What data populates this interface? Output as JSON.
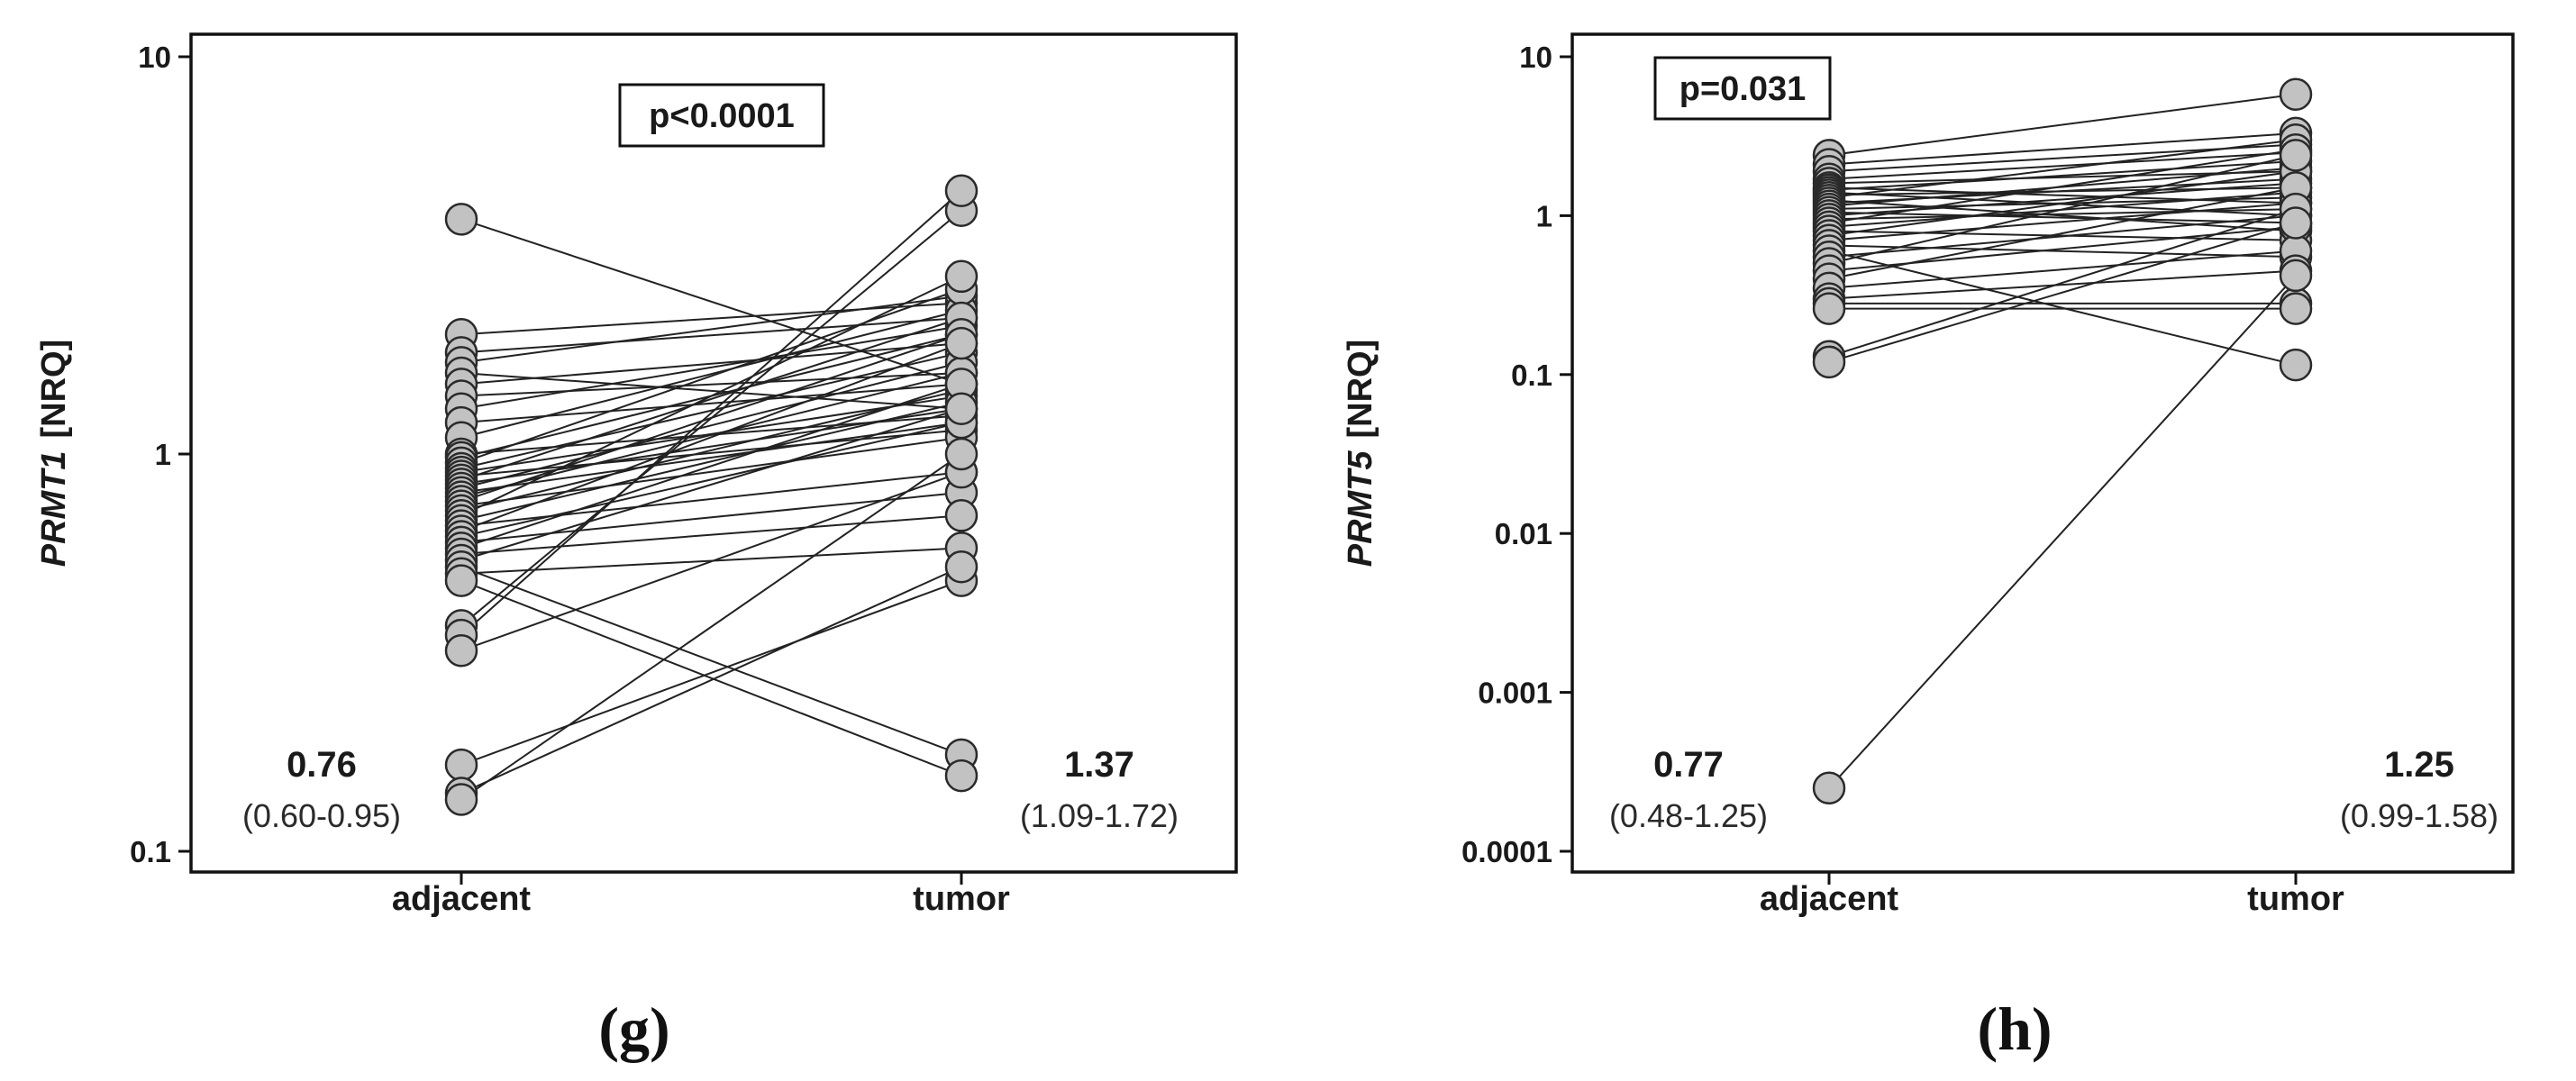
{
  "chart_data": [
    {
      "type": "line",
      "subtype": "paired-dot-plot",
      "panel_label": "(g)",
      "y_scale": "log",
      "ylim": [
        0.1,
        10
      ],
      "ylabel_gene": "PRMT1",
      "ylabel_unit": "[NRQ]",
      "y_tick_labels": [
        "10",
        "1",
        "0.1"
      ],
      "y_tick_values": [
        10,
        1,
        0.1
      ],
      "categories": [
        "adjacent",
        "tumor"
      ],
      "annotation": "p<0.0001",
      "groups": [
        {
          "name": "adjacent",
          "median": "0.76",
          "ci": "(0.60-0.95)"
        },
        {
          "name": "tumor",
          "median": "1.37",
          "ci": "(1.09-1.72)"
        }
      ],
      "pairs": [
        [
          3.9,
          1.5
        ],
        [
          2.0,
          2.4
        ],
        [
          1.8,
          2.2
        ],
        [
          1.7,
          2.5
        ],
        [
          1.6,
          1.3
        ],
        [
          1.5,
          1.9
        ],
        [
          1.4,
          1.6
        ],
        [
          1.3,
          2.1
        ],
        [
          1.2,
          1.5
        ],
        [
          1.1,
          2.3
        ],
        [
          1.0,
          1.25
        ],
        [
          0.98,
          2.0
        ],
        [
          0.95,
          2.6
        ],
        [
          0.92,
          1.8
        ],
        [
          0.9,
          1.4
        ],
        [
          0.88,
          1.15
        ],
        [
          0.86,
          2.2
        ],
        [
          0.84,
          1.3
        ],
        [
          0.82,
          1.7
        ],
        [
          0.8,
          1.2
        ],
        [
          0.78,
          1.6
        ],
        [
          0.76,
          2.0
        ],
        [
          0.74,
          1.1
        ],
        [
          0.72,
          1.45
        ],
        [
          0.7,
          2.8
        ],
        [
          0.68,
          1.35
        ],
        [
          0.66,
          0.9
        ],
        [
          0.64,
          1.9
        ],
        [
          0.62,
          1.2
        ],
        [
          0.6,
          0.8
        ],
        [
          0.58,
          1.5
        ],
        [
          0.56,
          0.7
        ],
        [
          0.54,
          1.3
        ],
        [
          0.52,
          0.175
        ],
        [
          0.5,
          0.58
        ],
        [
          0.48,
          0.155
        ],
        [
          0.37,
          4.1
        ],
        [
          0.35,
          4.6
        ],
        [
          0.32,
          0.9
        ],
        [
          0.165,
          0.48
        ],
        [
          0.14,
          0.52
        ],
        [
          0.135,
          1.0
        ]
      ]
    },
    {
      "type": "line",
      "subtype": "paired-dot-plot",
      "panel_label": "(h)",
      "y_scale": "log",
      "ylim": [
        0.0001,
        10
      ],
      "ylabel_gene": "PRMT5",
      "ylabel_unit": "[NRQ]",
      "y_tick_labels": [
        "10",
        "1",
        "0.1",
        "0.01",
        "0.001",
        "0.0001"
      ],
      "y_tick_values": [
        10,
        1,
        0.1,
        0.01,
        0.001,
        0.0001
      ],
      "categories": [
        "adjacent",
        "tumor"
      ],
      "annotation": "p=0.031",
      "groups": [
        {
          "name": "adjacent",
          "median": "0.77",
          "ci": "(0.48-1.25)"
        },
        {
          "name": "tumor",
          "median": "1.25",
          "ci": "(0.99-1.58)"
        }
      ],
      "pairs": [
        [
          2.4,
          5.8
        ],
        [
          2.1,
          3.3
        ],
        [
          1.9,
          2.8
        ],
        [
          1.7,
          2.5
        ],
        [
          1.6,
          1.9
        ],
        [
          1.5,
          1.2
        ],
        [
          1.45,
          2.2
        ],
        [
          1.4,
          1.0
        ],
        [
          1.35,
          1.5
        ],
        [
          1.3,
          3.0
        ],
        [
          1.25,
          0.8
        ],
        [
          1.2,
          1.7
        ],
        [
          1.15,
          2.0
        ],
        [
          1.1,
          1.3
        ],
        [
          1.05,
          0.9
        ],
        [
          1.0,
          1.6
        ],
        [
          0.95,
          1.1
        ],
        [
          0.9,
          2.6
        ],
        [
          0.85,
          1.4
        ],
        [
          0.8,
          0.7
        ],
        [
          0.75,
          1.9
        ],
        [
          0.7,
          1.2
        ],
        [
          0.65,
          0.55
        ],
        [
          0.6,
          0.115
        ],
        [
          0.55,
          1.0
        ],
        [
          0.5,
          2.4
        ],
        [
          0.45,
          0.85
        ],
        [
          0.4,
          1.5
        ],
        [
          0.35,
          0.6
        ],
        [
          0.3,
          0.45
        ],
        [
          0.28,
          0.28
        ],
        [
          0.26,
          0.26
        ],
        [
          0.13,
          1.1
        ],
        [
          0.12,
          0.9
        ],
        [
          0.00025,
          0.42
        ]
      ]
    }
  ]
}
